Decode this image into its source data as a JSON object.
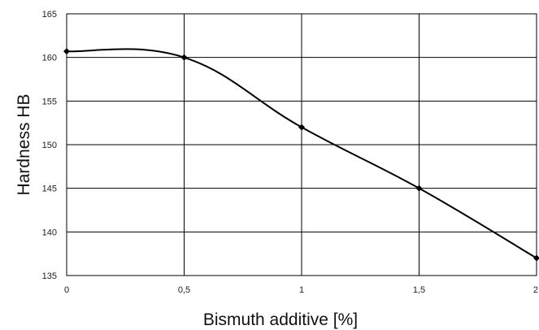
{
  "chart_data": {
    "type": "line",
    "title": "",
    "xlabel": "Bismuth additive [%]",
    "ylabel": "Hardness HB",
    "x_ticks": [
      "0",
      "0,5",
      "1",
      "1,5",
      "2"
    ],
    "y_ticks": [
      "135",
      "140",
      "145",
      "150",
      "155",
      "160",
      "165"
    ],
    "xlim": [
      0,
      2
    ],
    "ylim": [
      135,
      165
    ],
    "grid": true,
    "legend": "none",
    "series": [
      {
        "x": [
          0,
          0.5,
          1,
          1.5,
          2
        ],
        "y": [
          160.7,
          160.0,
          152.0,
          145.0,
          137.0
        ]
      }
    ],
    "colors": {
      "line": "#000000",
      "grid": "#000000",
      "background": "#ffffff"
    }
  }
}
